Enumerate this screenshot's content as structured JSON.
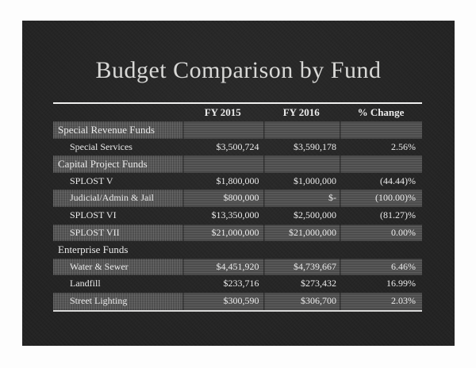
{
  "slide": {
    "title": "Budget Comparison by Fund"
  },
  "table": {
    "columns": [
      "",
      "FY 2015",
      "FY 2016",
      "% Change"
    ],
    "rows": [
      {
        "label": "Special Revenue Funds",
        "fy2015": "",
        "fy2016": "",
        "change": "",
        "kind": "section"
      },
      {
        "label": "Special Services",
        "fy2015": "$3,500,724",
        "fy2016": "$3,590,178",
        "change": "2.56%",
        "kind": "item"
      },
      {
        "label": "Capital Project Funds",
        "fy2015": "",
        "fy2016": "",
        "change": "",
        "kind": "section"
      },
      {
        "label": "SPLOST V",
        "fy2015": "$1,800,000",
        "fy2016": "$1,000,000",
        "change": "(44.44)%",
        "kind": "item"
      },
      {
        "label": "Judicial/Admin & Jail",
        "fy2015": "$800,000",
        "fy2016": "$-",
        "change": "(100.00)%",
        "kind": "item"
      },
      {
        "label": "SPLOST VI",
        "fy2015": "$13,350,000",
        "fy2016": "$2,500,000",
        "change": "(81.27)%",
        "kind": "item"
      },
      {
        "label": "SPLOST VII",
        "fy2015": "$21,000,000",
        "fy2016": "$21,000,000",
        "change": "0.00%",
        "kind": "item"
      },
      {
        "label": "Enterprise Funds",
        "fy2015": "",
        "fy2016": "",
        "change": "",
        "kind": "section"
      },
      {
        "label": "Water & Sewer",
        "fy2015": "$4,451,920",
        "fy2016": "$4,739,667",
        "change": "6.46%",
        "kind": "item"
      },
      {
        "label": "Landfill",
        "fy2015": "$233,716",
        "fy2016": "$273,432",
        "change": "16.99%",
        "kind": "item"
      },
      {
        "label": "Street Lighting",
        "fy2015": "$300,590",
        "fy2016": "$306,700",
        "change": "2.03%",
        "kind": "item"
      }
    ]
  },
  "colors": {
    "slide_background": "#242424",
    "band_fill": "#4e4e4e",
    "table_text": "#ebebeb",
    "title_text": "#d8d8d6",
    "rule_line": "#f0f0ef"
  }
}
